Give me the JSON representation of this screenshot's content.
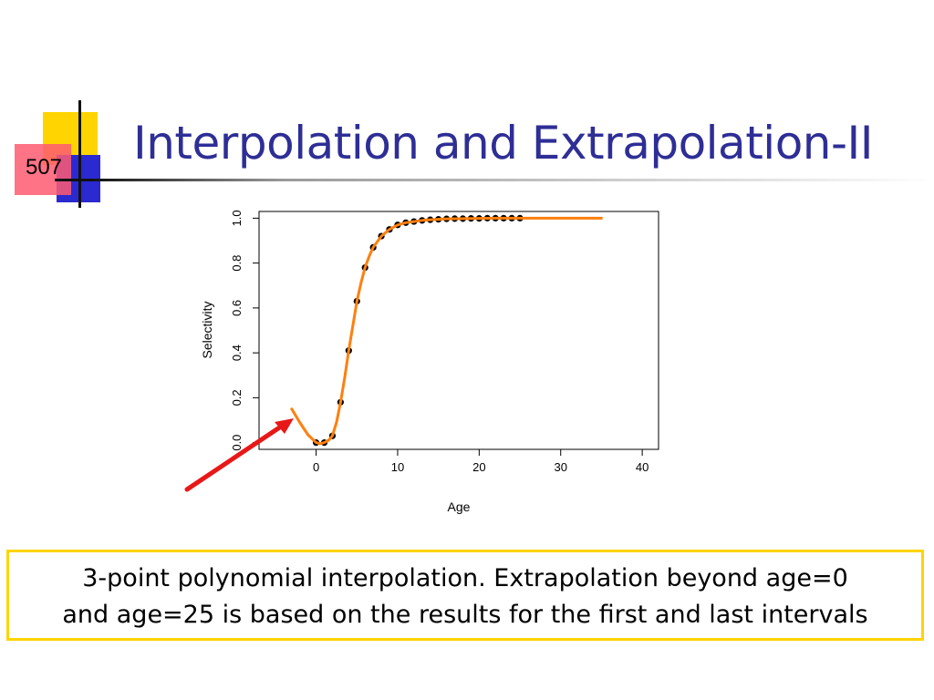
{
  "slide": {
    "number": "507",
    "title": "Interpolation and Extrapolation-II",
    "caption_lines": [
      "3-point polynomial interpolation. Extrapolation beyond age=0",
      "and age=25 is based on the results for the first and last intervals"
    ]
  },
  "colors": {
    "title": "#2e2e96",
    "fit_curve": "#ff7f0e",
    "points": "#000000",
    "arrow": "#e81818",
    "caption_border": "#ffd400"
  },
  "chart_data": {
    "type": "scatter",
    "xlabel": "Age",
    "ylabel": "Selectivity",
    "xlim": [
      -7,
      42
    ],
    "ylim": [
      -0.03,
      1.03
    ],
    "xticks": [
      0,
      10,
      20,
      30,
      40
    ],
    "yticks": [
      0.0,
      0.2,
      0.4,
      0.6,
      0.8,
      1.0
    ],
    "points": {
      "x": [
        0,
        1,
        2,
        3,
        4,
        5,
        6,
        7,
        8,
        9,
        10,
        11,
        12,
        13,
        14,
        15,
        16,
        17,
        18,
        19,
        20,
        21,
        22,
        23,
        24,
        25
      ],
      "y": [
        0.0,
        0.0,
        0.03,
        0.18,
        0.41,
        0.63,
        0.78,
        0.87,
        0.92,
        0.95,
        0.97,
        0.98,
        0.985,
        0.99,
        0.993,
        0.995,
        0.997,
        0.998,
        0.998,
        0.999,
        0.999,
        1.0,
        1.0,
        1.0,
        1.0,
        1.0
      ]
    },
    "fit_line": {
      "x": [
        -3,
        -2,
        -1,
        0,
        0.5,
        1,
        1.5,
        2,
        2.5,
        3,
        3.5,
        4,
        4.5,
        5,
        5.5,
        6,
        6.5,
        7,
        8,
        9,
        10,
        11,
        12,
        13,
        14,
        15,
        16,
        18,
        20,
        22,
        25,
        35
      ],
      "y": [
        0.15,
        0.09,
        0.035,
        0.0,
        -0.005,
        0.0,
        0.01,
        0.03,
        0.09,
        0.18,
        0.29,
        0.41,
        0.52,
        0.63,
        0.71,
        0.78,
        0.83,
        0.87,
        0.92,
        0.95,
        0.97,
        0.98,
        0.985,
        0.99,
        0.993,
        0.995,
        0.997,
        0.998,
        0.999,
        1.0,
        1.0,
        1.0
      ]
    }
  }
}
